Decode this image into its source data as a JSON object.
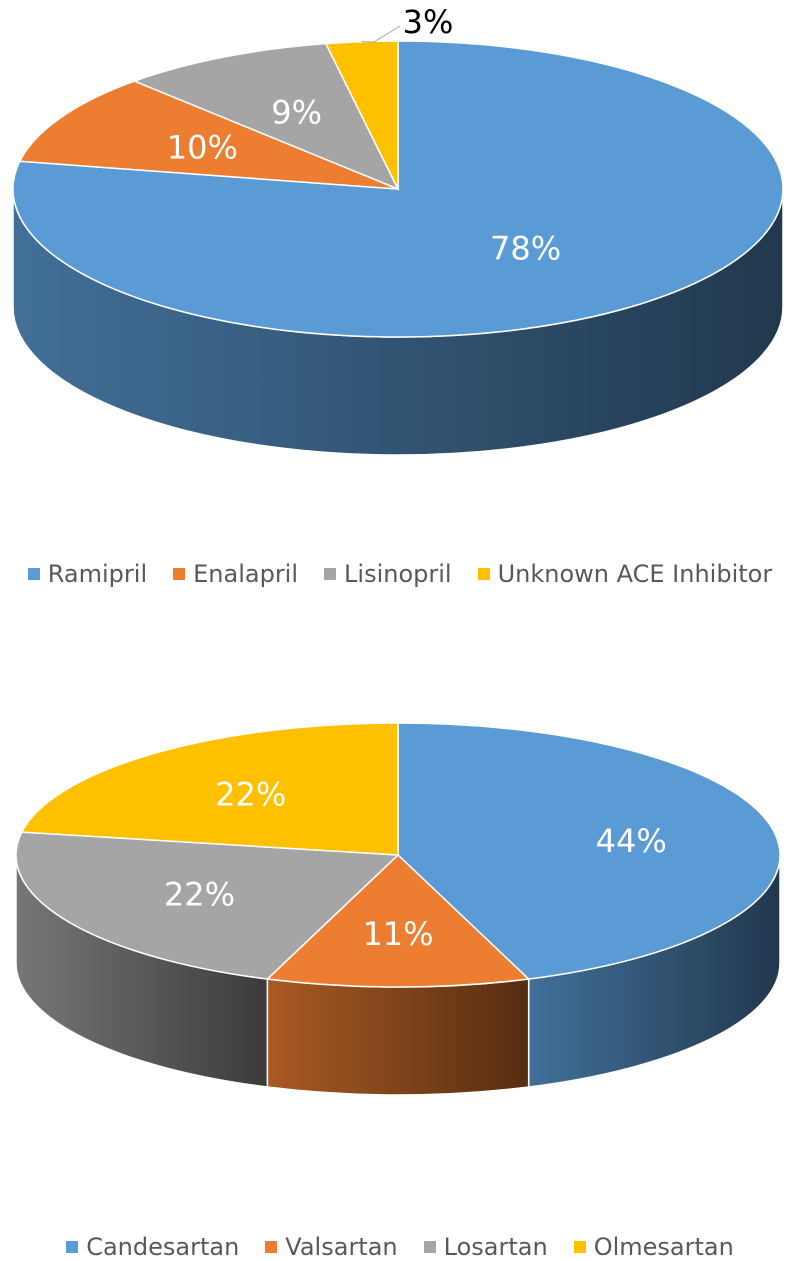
{
  "chart_data": [
    {
      "type": "pie",
      "title": "",
      "labels": [
        "Ramipril",
        "Enalapril",
        "Lisinopril",
        "Unknown ACE Inhibitor"
      ],
      "values": [
        78,
        10,
        9,
        3
      ],
      "data_labels": [
        "78%",
        "10%",
        "9%",
        "3%"
      ],
      "colors": [
        "#5B9BD5",
        "#ED7D31",
        "#A5A5A5",
        "#FFC000"
      ],
      "style": "3d",
      "legend": "bottom"
    },
    {
      "type": "pie",
      "title": "",
      "labels": [
        "Candesartan",
        "Valsartan",
        "Losartan",
        "Olmesartan"
      ],
      "values": [
        44,
        11,
        22,
        22
      ],
      "data_labels": [
        "44%",
        "11%",
        "22%",
        "22%"
      ],
      "colors": [
        "#5B9BD5",
        "#ED7D31",
        "#A5A5A5",
        "#FFC000"
      ],
      "style": "3d",
      "legend": "bottom"
    }
  ]
}
